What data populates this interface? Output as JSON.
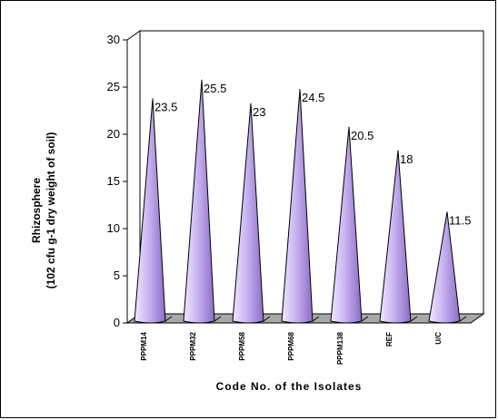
{
  "chart_data": {
    "type": "bar",
    "bar_shape": "cone",
    "categories": [
      "PPPM14",
      "PPPM32",
      "PPPM58",
      "PPPM68",
      "PPPM138",
      "REF",
      "U/C"
    ],
    "values": [
      23.5,
      25.5,
      23,
      24.5,
      20.5,
      18,
      11.5
    ],
    "data_labels": [
      "23.5",
      "25.5",
      "23",
      "24.5",
      "20.5",
      "18",
      "11.5"
    ],
    "title": "",
    "xlabel": "Code No. of the Isolates",
    "ylabel_line1": "Rhizosphere",
    "ylabel_line2": "(102 cfu g-1 dry weight of soil)",
    "ylim": [
      0,
      30
    ],
    "yticks": [
      0,
      5,
      10,
      15,
      20,
      25,
      30
    ],
    "grid": false,
    "legend": "none",
    "colors": {
      "bar_light": "#f0e8ff",
      "bar_mid": "#c8b4f0",
      "bar_dark": "#8c6cc8",
      "floor": "#a8a8a8",
      "axis": "#000000"
    }
  }
}
